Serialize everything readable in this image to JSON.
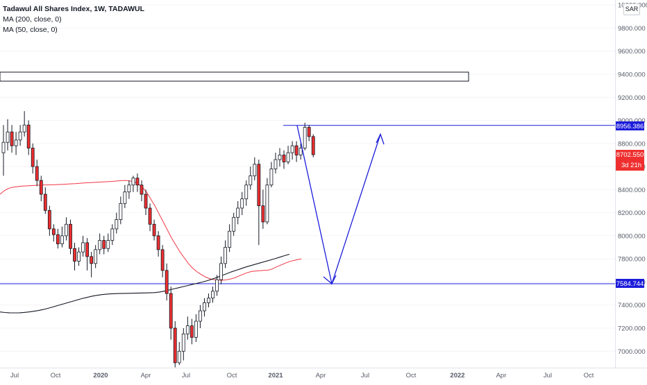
{
  "legend": {
    "title": "Tadawul All Shares Index, 1W, TADAWUL",
    "ma200": "MA (200, close, 0)",
    "ma50": "MA (50, close, 0)"
  },
  "currency_button": "SAR",
  "price_tags": {
    "resistance": "8956.386",
    "last_price": "8702.550",
    "countdown": "3d 21h",
    "support": "7584.744"
  },
  "colors": {
    "up": "#ffffff",
    "down": "#ef2f2f",
    "wick": "#131722",
    "ma200": "#131722",
    "ma50": "#f23645",
    "drawing": "#1c1cdb",
    "axis_text": "#555a66"
  },
  "chart_data": {
    "type": "candlestick",
    "title": "Tadawul All Shares Index, 1W, TADAWUL",
    "ylim": [
      6880,
      10040
    ],
    "y_ticks": [
      10000,
      9800,
      9600,
      9400,
      9200,
      9000,
      8800,
      8600,
      8400,
      8200,
      8000,
      7800,
      7600,
      7400,
      7200,
      7000
    ],
    "x_ticks": [
      "Jul",
      "Oct",
      "2020",
      "Apr",
      "Jul",
      "Oct",
      "2021",
      "Apr",
      "Jul",
      "Oct",
      "2022",
      "Apr",
      "Jul",
      "Oct"
    ],
    "candles": [
      [
        8720,
        8810,
        8960,
        8520
      ],
      [
        8810,
        8900,
        9010,
        8740
      ],
      [
        8900,
        8780,
        8960,
        8720
      ],
      [
        8780,
        8830,
        8900,
        8700
      ],
      [
        8830,
        8900,
        8960,
        8780
      ],
      [
        8900,
        8960,
        9080,
        8860
      ],
      [
        8960,
        8760,
        9000,
        8700
      ],
      [
        8760,
        8600,
        8800,
        8540
      ],
      [
        8600,
        8480,
        8660,
        8430
      ],
      [
        8480,
        8360,
        8520,
        8300
      ],
      [
        8360,
        8220,
        8420,
        8190
      ],
      [
        8220,
        8060,
        8260,
        8000
      ],
      [
        8060,
        8010,
        8100,
        7950
      ],
      [
        8010,
        7930,
        8060,
        7890
      ],
      [
        7930,
        8000,
        8080,
        7900
      ],
      [
        8000,
        8100,
        8160,
        7960
      ],
      [
        8100,
        7890,
        8140,
        7840
      ],
      [
        7890,
        7780,
        7940,
        7700
      ],
      [
        7780,
        7860,
        7900,
        7740
      ],
      [
        7860,
        7940,
        8000,
        7820
      ],
      [
        7940,
        7820,
        7980,
        7700
      ],
      [
        7820,
        7760,
        7860,
        7640
      ],
      [
        7760,
        7880,
        7920,
        7720
      ],
      [
        7880,
        7960,
        8020,
        7840
      ],
      [
        7960,
        7890,
        8000,
        7840
      ],
      [
        7890,
        7960,
        8020,
        7860
      ],
      [
        7960,
        8060,
        8100,
        7920
      ],
      [
        8060,
        8140,
        8200,
        8020
      ],
      [
        8140,
        8280,
        8340,
        8100
      ],
      [
        8280,
        8380,
        8440,
        8240
      ],
      [
        8380,
        8440,
        8480,
        8320
      ],
      [
        8440,
        8500,
        8520,
        8380
      ],
      [
        8500,
        8440,
        8540,
        8380
      ],
      [
        8440,
        8360,
        8480,
        8300
      ],
      [
        8360,
        8240,
        8400,
        8180
      ],
      [
        8240,
        8100,
        8280,
        8040
      ],
      [
        8100,
        8000,
        8140,
        7960
      ],
      [
        8000,
        7880,
        8040,
        7820
      ],
      [
        7880,
        7700,
        7920,
        7640
      ],
      [
        7700,
        7500,
        7760,
        7440
      ],
      [
        7500,
        7200,
        7560,
        7100
      ],
      [
        7200,
        6900,
        7260,
        6860
      ],
      [
        6900,
        7000,
        7080,
        6880
      ],
      [
        7000,
        7150,
        7200,
        6920
      ],
      [
        7150,
        7220,
        7300,
        7100
      ],
      [
        7220,
        7120,
        7280,
        7060
      ],
      [
        7120,
        7260,
        7320,
        7080
      ],
      [
        7260,
        7350,
        7400,
        7200
      ],
      [
        7350,
        7420,
        7460,
        7300
      ],
      [
        7420,
        7460,
        7500,
        7380
      ],
      [
        7460,
        7520,
        7560,
        7420
      ],
      [
        7520,
        7620,
        7660,
        7480
      ],
      [
        7620,
        7760,
        7820,
        7580
      ],
      [
        7760,
        7900,
        7960,
        7720
      ],
      [
        7900,
        8040,
        8100,
        7860
      ],
      [
        8040,
        8160,
        8200,
        8000
      ],
      [
        8160,
        8240,
        8300,
        8100
      ],
      [
        8240,
        8320,
        8380,
        8180
      ],
      [
        8320,
        8440,
        8480,
        8260
      ],
      [
        8440,
        8520,
        8600,
        8400
      ],
      [
        8520,
        8620,
        8680,
        8480
      ],
      [
        8620,
        8260,
        8660,
        7920
      ],
      [
        8260,
        8120,
        8400,
        8060
      ],
      [
        8120,
        8440,
        8500,
        8100
      ],
      [
        8440,
        8580,
        8640,
        8420
      ],
      [
        8580,
        8660,
        8720,
        8540
      ],
      [
        8660,
        8700,
        8760,
        8600
      ],
      [
        8700,
        8640,
        8740,
        8580
      ],
      [
        8640,
        8720,
        8780,
        8620
      ],
      [
        8720,
        8780,
        8820,
        8660
      ],
      [
        8780,
        8700,
        8820,
        8640
      ],
      [
        8700,
        8760,
        8800,
        8660
      ],
      [
        8760,
        8940,
        8980,
        8740
      ],
      [
        8940,
        8860,
        8960,
        8820
      ],
      [
        8860,
        8703,
        8880,
        8680
      ]
    ],
    "ma50": [
      8360,
      8390,
      8410,
      8420,
      8425,
      8430,
      8432,
      8434,
      8436,
      8438,
      8440,
      8441,
      8442,
      8443,
      8444,
      8446,
      8448,
      8450,
      8452,
      8455,
      8458,
      8460,
      8462,
      8464,
      8466,
      8468,
      8470,
      8472,
      8475,
      8478,
      8480,
      8476,
      8468,
      8450,
      8420,
      8380,
      8320,
      8260,
      8190,
      8120,
      8050,
      7980,
      7920,
      7860,
      7810,
      7760,
      7720,
      7690,
      7665,
      7645,
      7630,
      7620,
      7617,
      7615,
      7618,
      7625,
      7635,
      7650,
      7665,
      7680,
      7690,
      7695,
      7697,
      7700,
      7702,
      7712,
      7730,
      7745,
      7760,
      7775,
      7785,
      7793,
      7800
    ],
    "ma200": [
      7340,
      7335,
      7333,
      7332,
      7333,
      7336,
      7340,
      7346,
      7353,
      7362,
      7372,
      7384,
      7396,
      7408,
      7420,
      7432,
      7444,
      7456,
      7466,
      7476,
      7484,
      7490,
      7494,
      7497,
      7499,
      7500,
      7501,
      7502,
      7503,
      7504,
      7505,
      7506,
      7508,
      7512,
      7520,
      7530,
      7540,
      7550,
      7560,
      7570,
      7580,
      7590,
      7600,
      7612,
      7625,
      7640,
      7656,
      7672,
      7688,
      7702,
      7716,
      7730,
      7742,
      7754,
      7766,
      7778,
      7790,
      7802,
      7815,
      7828,
      7840
    ],
    "horizontal_lines": [
      8956.386,
      7584.744
    ],
    "projection_path": [
      8956.386,
      7584.744,
      8880
    ]
  }
}
